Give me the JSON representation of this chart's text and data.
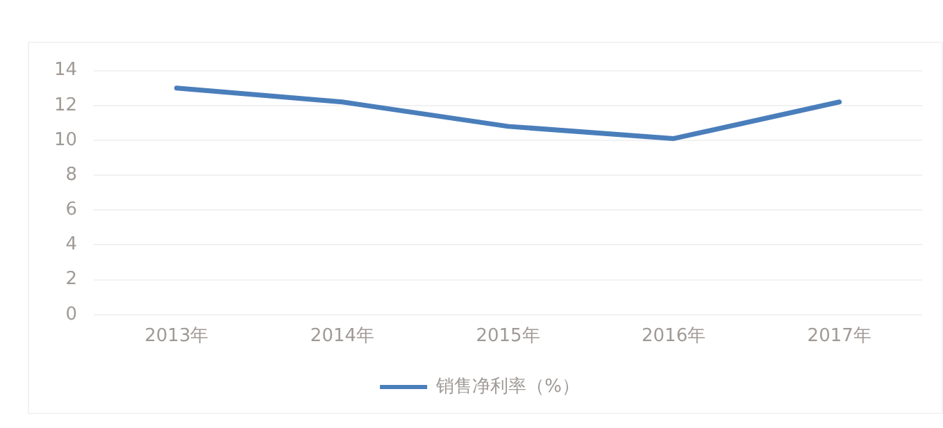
{
  "chart_data": {
    "type": "line",
    "categories": [
      "2013年",
      "2014年",
      "2015年",
      "2016年",
      "2017年"
    ],
    "series": [
      {
        "name": "销售净利率（%）",
        "color": "#4a7ebb",
        "values": [
          13.0,
          12.2,
          10.8,
          10.1,
          12.2
        ]
      }
    ],
    "ylim": [
      0,
      14
    ],
    "yticks": [
      0,
      2,
      4,
      6,
      8,
      10,
      12,
      14
    ],
    "grid": "y",
    "legend": "bottom",
    "marker": "none",
    "line_style": "solid"
  }
}
